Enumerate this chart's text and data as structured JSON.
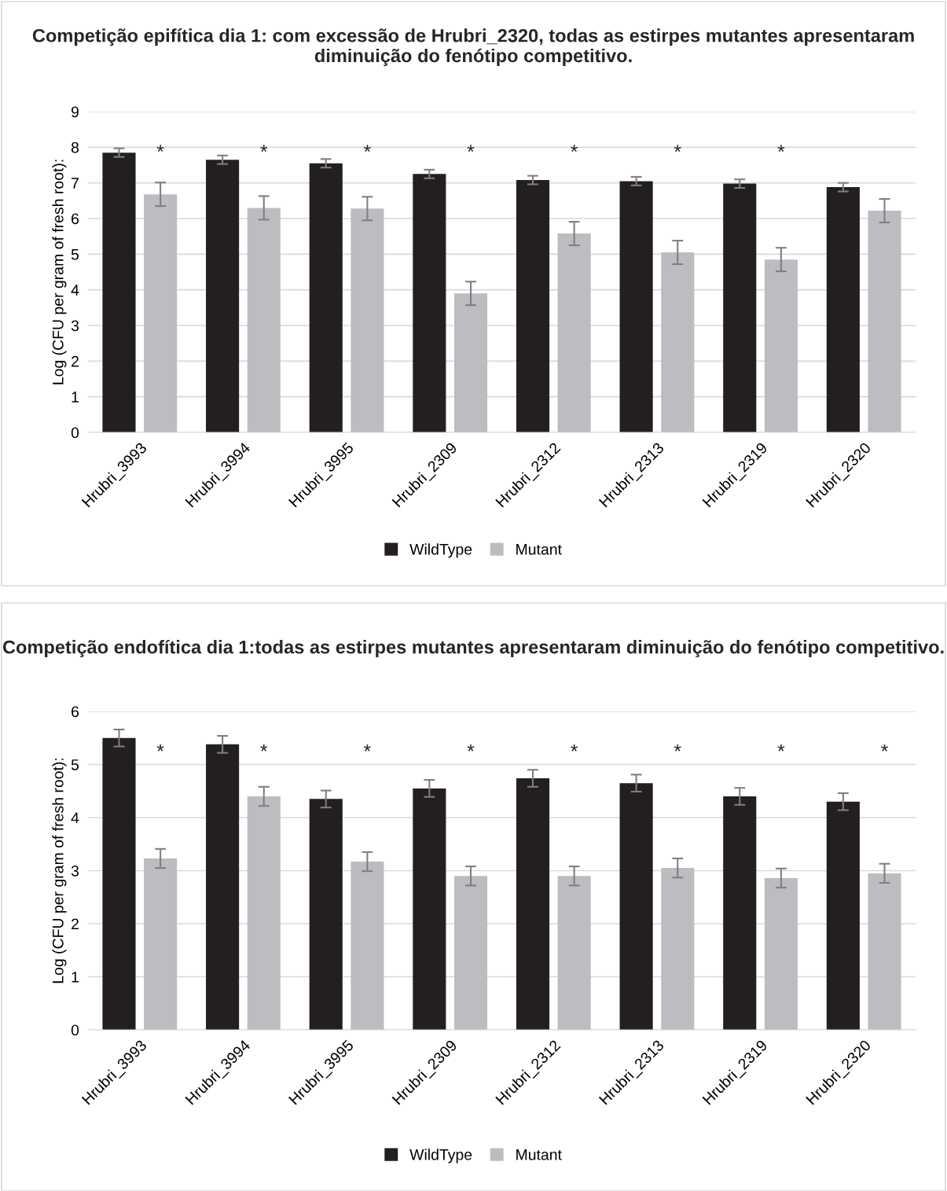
{
  "chart_data": [
    {
      "type": "bar",
      "title": "Competição epifítica dia 1: com excessão de Hrubri_2320, todas as estirpes mutantes apresentaram diminuição do fenótipo competitivo.",
      "ylabel": "Log (CFU per gram of fresh root):",
      "categories": [
        "Hrubri_3993",
        "Hrubri_3994",
        "Hrubri_3995",
        "Hrubri_2309",
        "Hrubri_2312",
        "Hrubri_2313",
        "Hrubri_2319",
        "Hrubri_2320"
      ],
      "series": [
        {
          "name": "WildType",
          "color": "#231f20",
          "values": [
            7.85,
            7.65,
            7.55,
            7.25,
            7.08,
            7.05,
            6.98,
            6.88
          ],
          "errors": [
            0.12,
            0.12,
            0.12,
            0.12,
            0.12,
            0.12,
            0.12,
            0.12
          ]
        },
        {
          "name": "Mutant",
          "color": "#bcbdc0",
          "values": [
            6.68,
            6.3,
            6.28,
            3.9,
            5.58,
            5.05,
            4.85,
            6.22
          ],
          "errors": [
            0.33,
            0.33,
            0.33,
            0.33,
            0.33,
            0.33,
            0.33,
            0.33
          ]
        }
      ],
      "annotations": [
        "*",
        "*",
        "*",
        "*",
        "*",
        "*",
        "*"
      ],
      "ylim": [
        0,
        9
      ],
      "yticks": [
        0,
        1,
        2,
        3,
        4,
        5,
        6,
        7,
        8,
        9
      ],
      "grid": "y",
      "legend": "bottom"
    },
    {
      "type": "bar",
      "title": "Competição endofítica dia 1:todas as estirpes mutantes apresentaram diminuição do fenótipo competitivo.",
      "ylabel": "Log (CFU per gram of fresh root):",
      "categories": [
        "Hrubri_3993",
        "Hrubri_3994",
        "Hrubri_3995",
        "Hrubri_2309",
        "Hrubri_2312",
        "Hrubri_2313",
        "Hrubri_2319",
        "Hrubri_2320"
      ],
      "series": [
        {
          "name": "WildType",
          "color": "#231f20",
          "values": [
            5.5,
            5.38,
            4.35,
            4.55,
            4.74,
            4.65,
            4.4,
            4.3
          ],
          "errors": [
            0.16,
            0.16,
            0.16,
            0.16,
            0.16,
            0.16,
            0.16,
            0.16
          ]
        },
        {
          "name": "Mutant",
          "color": "#bcbdc0",
          "values": [
            3.23,
            4.4,
            3.17,
            2.9,
            2.9,
            3.05,
            2.86,
            2.95
          ],
          "errors": [
            0.18,
            0.18,
            0.18,
            0.18,
            0.18,
            0.18,
            0.18,
            0.18
          ]
        }
      ],
      "annotations": [
        "*",
        "*",
        "*",
        "*",
        "*",
        "*",
        "*",
        "*"
      ],
      "ylim": [
        0,
        6
      ],
      "yticks": [
        0,
        1,
        2,
        3,
        4,
        5,
        6
      ],
      "grid": "y",
      "legend": "bottom"
    }
  ]
}
